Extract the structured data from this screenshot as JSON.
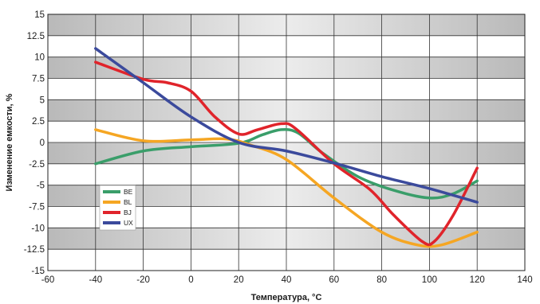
{
  "chart_data": {
    "type": "line",
    "title": "",
    "xlabel": "Температура, °C",
    "ylabel": "Изменение емкости, %",
    "xlim": [
      -60,
      140
    ],
    "ylim": [
      -15,
      15
    ],
    "x_ticks": [
      -60,
      -40,
      -20,
      0,
      20,
      40,
      60,
      80,
      100,
      120,
      140
    ],
    "y_ticks": [
      15,
      12.5,
      10,
      7.5,
      5,
      2.5,
      0,
      -2.5,
      -5,
      -7.5,
      -10,
      -12.5,
      -15
    ],
    "grid": true,
    "legend_position": "lower-left",
    "series": [
      {
        "name": "BE",
        "color": "#3a9e6a",
        "points": [
          [
            -40,
            -2.5
          ],
          [
            -20,
            -1.0
          ],
          [
            0,
            -0.5
          ],
          [
            20,
            -0.1
          ],
          [
            30,
            0.9
          ],
          [
            38,
            1.5
          ],
          [
            45,
            1.1
          ],
          [
            55,
            -1.2
          ],
          [
            70,
            -4.0
          ],
          [
            85,
            -5.6
          ],
          [
            100,
            -6.5
          ],
          [
            110,
            -6.0
          ],
          [
            120,
            -4.5
          ]
        ]
      },
      {
        "name": "BL",
        "color": "#f5a623",
        "points": [
          [
            -40,
            1.5
          ],
          [
            -20,
            0.2
          ],
          [
            0,
            0.3
          ],
          [
            15,
            0.4
          ],
          [
            25,
            -0.3
          ],
          [
            40,
            -2.0
          ],
          [
            60,
            -6.5
          ],
          [
            80,
            -10.5
          ],
          [
            95,
            -12.0
          ],
          [
            105,
            -12.0
          ],
          [
            120,
            -10.5
          ]
        ]
      },
      {
        "name": "BJ",
        "color": "#e0242b",
        "points": [
          [
            -40,
            9.4
          ],
          [
            -20,
            7.4
          ],
          [
            -10,
            7.0
          ],
          [
            0,
            6.0
          ],
          [
            10,
            3.0
          ],
          [
            20,
            1.0
          ],
          [
            28,
            1.5
          ],
          [
            38,
            2.2
          ],
          [
            44,
            1.6
          ],
          [
            60,
            -2.5
          ],
          [
            75,
            -5.5
          ],
          [
            85,
            -8.5
          ],
          [
            97,
            -11.6
          ],
          [
            102,
            -11.6
          ],
          [
            110,
            -8.5
          ],
          [
            120,
            -3.0
          ]
        ]
      },
      {
        "name": "UX",
        "color": "#3b4a9c",
        "points": [
          [
            -40,
            11.0
          ],
          [
            -20,
            7.0
          ],
          [
            0,
            3.0
          ],
          [
            20,
            0.0
          ],
          [
            40,
            -1.0
          ],
          [
            60,
            -2.4
          ],
          [
            80,
            -4.0
          ],
          [
            100,
            -5.4
          ],
          [
            120,
            -7.0
          ]
        ]
      }
    ]
  }
}
